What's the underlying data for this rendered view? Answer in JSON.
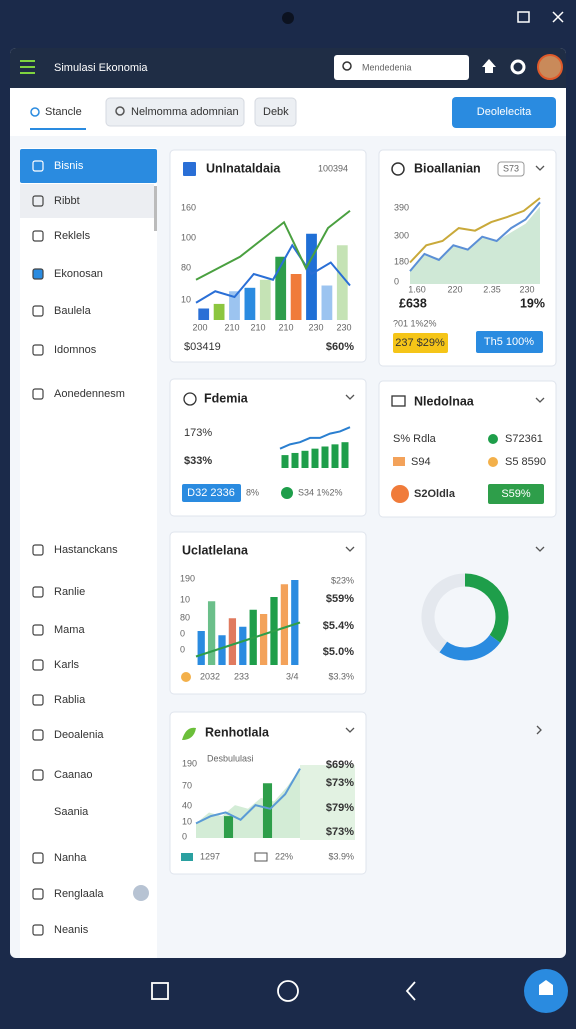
{
  "window": {
    "app_title": "Simulasi Ekonomia",
    "search_placeholder": "Mendedenia"
  },
  "toolbar": {
    "tab": "Stancle",
    "search_placeholder": "Nelmomma adomnian",
    "filter": "Debk",
    "action": "Deolelecita"
  },
  "sidebar": {
    "items": [
      "Bisnis",
      "Ribbt",
      "Reklels",
      "Ekonosan",
      "Baulela",
      "Idomnos",
      "Aonedennesm",
      "Hastanckans",
      "Ranlie",
      "Mama",
      "Karls",
      "Rablia",
      "Deoalenia",
      "Caanao",
      "Saania",
      "Nanha",
      "Renglaala",
      "Neanis"
    ]
  },
  "cards": [
    {
      "title": "Unlnataldaia",
      "meta": "100394",
      "y_labels": [
        "160",
        "100",
        "80",
        "10"
      ],
      "x_labels": [
        "200",
        "210",
        "210",
        "210",
        "230",
        "230"
      ],
      "footer": [
        "$03419",
        "$60%"
      ],
      "chart": {
        "ylim": [
          0,
          100
        ],
        "bars": {
          "values": [
            10,
            14,
            25,
            28,
            35,
            55,
            40,
            75,
            30,
            65
          ],
          "colors": [
            "#2a6fd6",
            "#8cc63f",
            "#9cc4f0",
            "#2a8be0",
            "#c5e3b5",
            "#2e9e4a",
            "#f07b3a",
            "#1f6fd6",
            "#9cc4f0",
            "#c5e3b5"
          ]
        },
        "lines": [
          {
            "color": "#2a6fd6",
            "values": [
              15,
              25,
              20,
              40,
              35,
              65,
              40,
              50,
              30
            ]
          },
          {
            "color": "#4aa040",
            "values": [
              35,
              45,
              55,
              70,
              85,
              45,
              80,
              95
            ]
          }
        ]
      }
    },
    {
      "title": "Bioallanian",
      "badge": "S73",
      "y_labels": [
        "390",
        "300",
        "180",
        "0"
      ],
      "x_labels": [
        "1.60",
        "220",
        "2.35",
        "230"
      ],
      "stats": [
        "£638",
        "19%"
      ],
      "note": "?01 1%2%",
      "buttons": [
        "237 $29%",
        "Th5 100%"
      ],
      "chart": {
        "ylim": [
          0,
          100
        ],
        "area": {
          "color": "#cfe8d6",
          "values": [
            15,
            35,
            30,
            45,
            40,
            55,
            50,
            60,
            70,
            90
          ]
        },
        "lines": [
          {
            "color": "#5b8fd6",
            "values": [
              15,
              35,
              28,
              45,
              40,
              55,
              50,
              65,
              75,
              95
            ]
          },
          {
            "color": "#c9a93a",
            "values": [
              25,
              45,
              50,
              65,
              62,
              72,
              78,
              85,
              100
            ]
          }
        ]
      }
    },
    {
      "title": "Fdemia",
      "stats": [
        "173%",
        "$33%"
      ],
      "footer": [
        "D32 2336",
        "8%",
        "S34 1%2%"
      ],
      "chart": {
        "ylim": [
          0,
          100
        ],
        "bars": {
          "values": [
            30,
            35,
            40,
            45,
            50,
            55,
            60
          ],
          "colors": [
            "#1e9e4a",
            "#1e9e4a",
            "#1e9e4a",
            "#1e9e4a",
            "#1e9e4a",
            "#1e9e4a",
            "#1e9e4a"
          ]
        },
        "lines": [
          {
            "color": "#2a7fd0",
            "values": [
              45,
              55,
              60,
              70,
              70,
              80,
              85,
              95
            ]
          }
        ]
      }
    },
    {
      "title": "Nledolnaa",
      "rows": [
        [
          "S% Rdla",
          "S72361"
        ],
        [
          "S94",
          "S5 8590"
        ]
      ],
      "footer": [
        "S2Oldla",
        "S59%"
      ]
    },
    {
      "title": "Uclatlelana",
      "y_labels": [
        "190",
        "10",
        "80",
        "0",
        "0"
      ],
      "side_labels": [
        "$23%",
        "$59%",
        "$5.4%",
        "$5.0%",
        "$3.3%"
      ],
      "footer": [
        "2032",
        "233",
        "3/4"
      ],
      "chart": {
        "ylim": [
          0,
          100
        ],
        "bars": {
          "values": [
            40,
            75,
            35,
            55,
            45,
            65,
            60,
            80,
            95,
            100
          ],
          "colors": [
            "#2a8be0",
            "#6bbf8a",
            "#2a8be0",
            "#e07a5f",
            "#2a8be0",
            "#1e9e4a",
            "#f3a25a",
            "#1e9e4a",
            "#f3a25a",
            "#2a8be0"
          ]
        },
        "lines": [
          {
            "color": "#2e9e4a",
            "values": [
              10,
              20,
              30,
              40,
              50
            ]
          }
        ]
      }
    },
    {
      "title": "Renhotlala",
      "chart_title": "Desbululasi",
      "y_labels": [
        "190",
        "70",
        "40",
        "10",
        "0"
      ],
      "side_labels": [
        "$69%",
        "$73%",
        "$79%",
        "$73%"
      ],
      "footer": [
        "1297",
        "22%",
        "$3.9%"
      ],
      "chart": {
        "ylim": [
          0,
          100
        ],
        "area": {
          "color": "#d3ecd6",
          "values": [
            20,
            35,
            30,
            45,
            40,
            55,
            50,
            70,
            95
          ]
        },
        "bars": {
          "values": [
            0,
            0,
            30,
            0,
            0,
            75,
            0,
            0
          ],
          "colors": [
            "#2e9e4a",
            "#2e9e4a",
            "#2e9e4a",
            "#2e9e4a",
            "#2e9e4a",
            "#2e9e4a",
            "#2e9e4a",
            "#2e9e4a"
          ]
        },
        "lines": [
          {
            "color": "#5b9bd6",
            "values": [
              20,
              30,
              35,
              25,
              45,
              40,
              60,
              95
            ]
          }
        ]
      }
    }
  ],
  "donut": {
    "values": [
      35,
      25,
      40
    ],
    "colors": [
      "#1e9e4a",
      "#2a8be0",
      "#e4e8ee"
    ]
  }
}
